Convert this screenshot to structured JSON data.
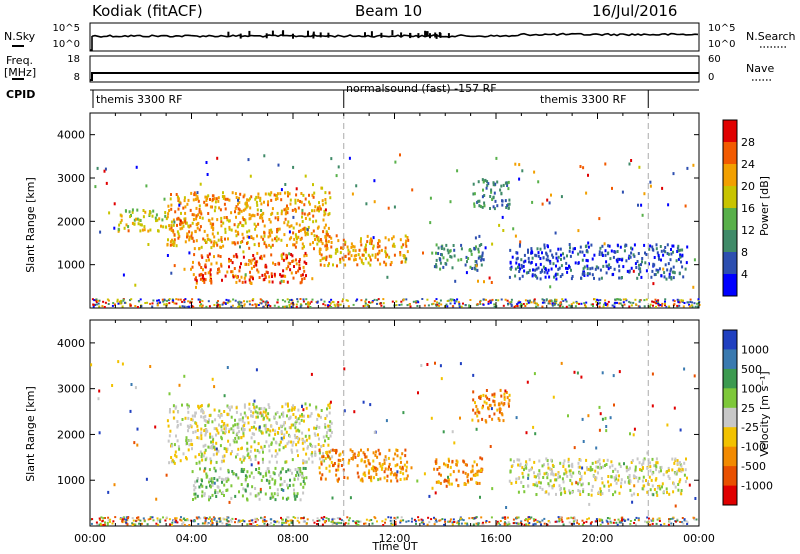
{
  "header": {
    "station": "Kodiak (fitACF)",
    "beam": "Beam 10",
    "date": "16/Jul/2016"
  },
  "left_labels": {
    "nsky": "N.Sky",
    "freq": "Freq.",
    "freq_unit": "[MHz]",
    "cpid": "CPID"
  },
  "right_labels": {
    "nsearch": "N.Search",
    "nave": "Nave",
    "nsearch_ticks": [
      "10^5",
      "10^0"
    ],
    "nave_ticks": [
      "60",
      "0"
    ]
  },
  "left_ticks": {
    "nsky": [
      "10^5",
      "10^0"
    ],
    "freq": [
      "18",
      "8"
    ]
  },
  "cpid_segments": [
    {
      "label": "themis 3300 RF",
      "start_hour": 0.0,
      "end_hour": 10.0
    },
    {
      "label": "normalsound (fast) -157 RF",
      "start_hour": 10.0,
      "end_hour": 22.0
    },
    {
      "label": "themis 3300 RF",
      "start_hour": 18.0,
      "end_hour": 22.0
    }
  ],
  "chart_data": [
    {
      "type": "heatmap",
      "panel": "power",
      "xlabel": "",
      "ylabel": "Slant Range [km]",
      "ylim": [
        0,
        4500
      ],
      "xlim": [
        0,
        24
      ],
      "yticks": [
        "1000",
        "2000",
        "3000",
        "4000"
      ],
      "colorbar_label": "Power [dB]",
      "colorbar_ticks": [
        "4",
        "8",
        "12",
        "16",
        "20",
        "24",
        "28"
      ],
      "colors": [
        "#0000ff",
        "#2d4fb0",
        "#3f8a68",
        "#58b04a",
        "#c8c400",
        "#f2a000",
        "#f25a00",
        "#e00000"
      ],
      "boundaries_hour": [
        10.0,
        22.0
      ],
      "regions": [
        {
          "hour_range": [
            1.0,
            3.0
          ],
          "range_km": [
            1800,
            2300
          ],
          "level": 4
        },
        {
          "hour_range": [
            3.0,
            9.5
          ],
          "range_km": [
            1400,
            2700
          ],
          "level": 5
        },
        {
          "hour_range": [
            4.0,
            8.5
          ],
          "range_km": [
            600,
            1300
          ],
          "level": 6
        },
        {
          "hour_range": [
            9.0,
            12.5
          ],
          "range_km": [
            1000,
            1700
          ],
          "level": 5
        },
        {
          "hour_range": [
            13.5,
            15.5
          ],
          "range_km": [
            900,
            1500
          ],
          "level": 2
        },
        {
          "hour_range": [
            15.0,
            16.5
          ],
          "range_km": [
            2300,
            3000
          ],
          "level": 2
        },
        {
          "hour_range": [
            16.5,
            23.5
          ],
          "range_km": [
            700,
            1500
          ],
          "level": 1
        }
      ]
    },
    {
      "type": "heatmap",
      "panel": "velocity",
      "xlabel": "Time UT",
      "ylabel": "Slant Range [km]",
      "ylim": [
        0,
        4500
      ],
      "xlim": [
        0,
        24
      ],
      "xticks": [
        "00:00",
        "04:00",
        "08:00",
        "12:00",
        "16:00",
        "20:00",
        "00:00"
      ],
      "yticks": [
        "1000",
        "2000",
        "3000",
        "4000"
      ],
      "colorbar_label": "Velocity [m s⁻¹]",
      "colorbar_ticks": [
        "1000",
        "500",
        "100",
        "25",
        "-25",
        "-100",
        "-500",
        "-1000"
      ],
      "colors": [
        "#2040c0",
        "#3a7ab0",
        "#3c9a50",
        "#7ec83a",
        "#c8c8c8",
        "#f2c200",
        "#f28a00",
        "#e85000",
        "#e00000"
      ],
      "boundaries_hour": [
        10.0,
        22.0
      ],
      "regions": [
        {
          "hour_range": [
            3.0,
            9.5
          ],
          "range_km": [
            1400,
            2700
          ],
          "level": 4
        },
        {
          "hour_range": [
            4.0,
            8.5
          ],
          "range_km": [
            600,
            1300
          ],
          "level": 3
        },
        {
          "hour_range": [
            9.0,
            12.5
          ],
          "range_km": [
            1000,
            1700
          ],
          "level": 6
        },
        {
          "hour_range": [
            13.5,
            15.5
          ],
          "range_km": [
            900,
            1500
          ],
          "level": 6
        },
        {
          "hour_range": [
            15.0,
            16.5
          ],
          "range_km": [
            2300,
            3000
          ],
          "level": 6
        },
        {
          "hour_range": [
            16.5,
            23.5
          ],
          "range_km": [
            700,
            1500
          ],
          "level": 4
        }
      ]
    }
  ]
}
